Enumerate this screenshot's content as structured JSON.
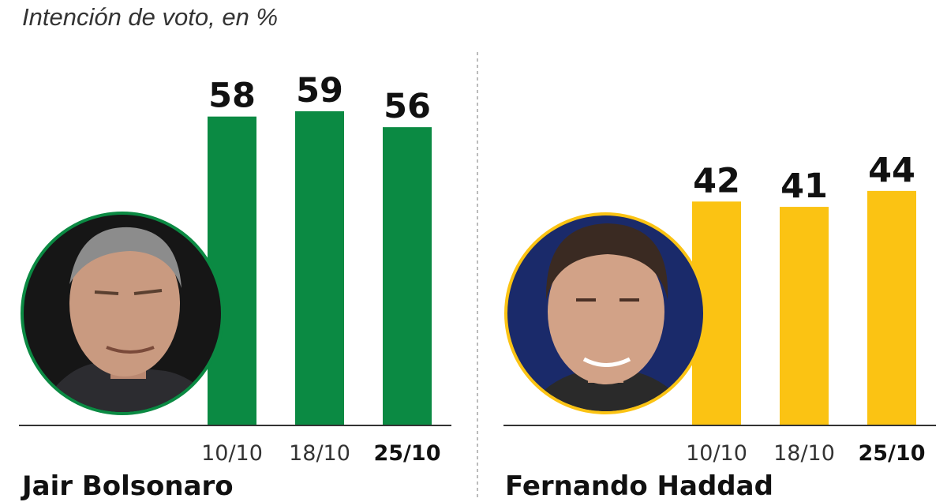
{
  "subtitle": "Intención de voto, en %",
  "colors": {
    "bolsonaro": "#0b8a43",
    "haddad": "#fbc313",
    "axis": "#333333",
    "divider": "#bbbbbb"
  },
  "chart_data": [
    {
      "type": "bar",
      "categories": [
        "10/10",
        "18/10",
        "25/10"
      ],
      "bold_category": "25/10",
      "series": [
        {
          "name": "Jair Bolsonaro",
          "values": [
            58,
            59,
            56
          ]
        }
      ],
      "ylim": [
        0,
        67
      ],
      "grid": false
    },
    {
      "type": "bar",
      "categories": [
        "10/10",
        "18/10",
        "25/10"
      ],
      "bold_category": "25/10",
      "series": [
        {
          "name": "Fernando Haddad",
          "values": [
            42,
            41,
            44
          ]
        }
      ],
      "ylim": [
        0,
        67
      ],
      "grid": false
    }
  ],
  "candidates": [
    {
      "name": "Jair Bolsonaro",
      "portrait_icon": "portrait-bolsonaro-photo"
    },
    {
      "name": "Fernando Haddad",
      "portrait_icon": "portrait-haddad-photo"
    }
  ]
}
